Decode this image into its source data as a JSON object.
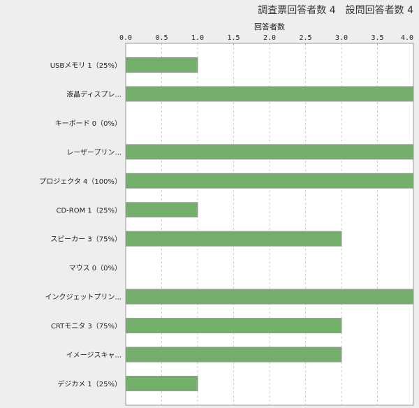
{
  "chart_data": {
    "type": "bar",
    "orientation": "horizontal",
    "title": "調査票回答者数 4　設問回答者数 4",
    "xlabel": "回答者数",
    "xlim": [
      0,
      4
    ],
    "xticks": [
      "0.0",
      "0.5",
      "1.0",
      "1.5",
      "2.0",
      "2.5",
      "3.0",
      "3.5",
      "4.0"
    ],
    "grid": true,
    "categories": [
      "USBメモリ 1（25%）",
      "液晶ディスプレ...",
      "キーボード 0（0%）",
      "レーザープリン...",
      "プロジェクタ 4（100%）",
      "CD-ROM 1（25%）",
      "スピーカー 3（75%）",
      "マウス 0（0%）",
      "インクジェットプリン...",
      "CRTモニタ 3（75%）",
      "イメージスキャ...",
      "デジカメ 1（25%）"
    ],
    "values": [
      1,
      4,
      0,
      4,
      4,
      1,
      3,
      0,
      4,
      3,
      3,
      1
    ],
    "bar_color": "#73ae6a"
  }
}
